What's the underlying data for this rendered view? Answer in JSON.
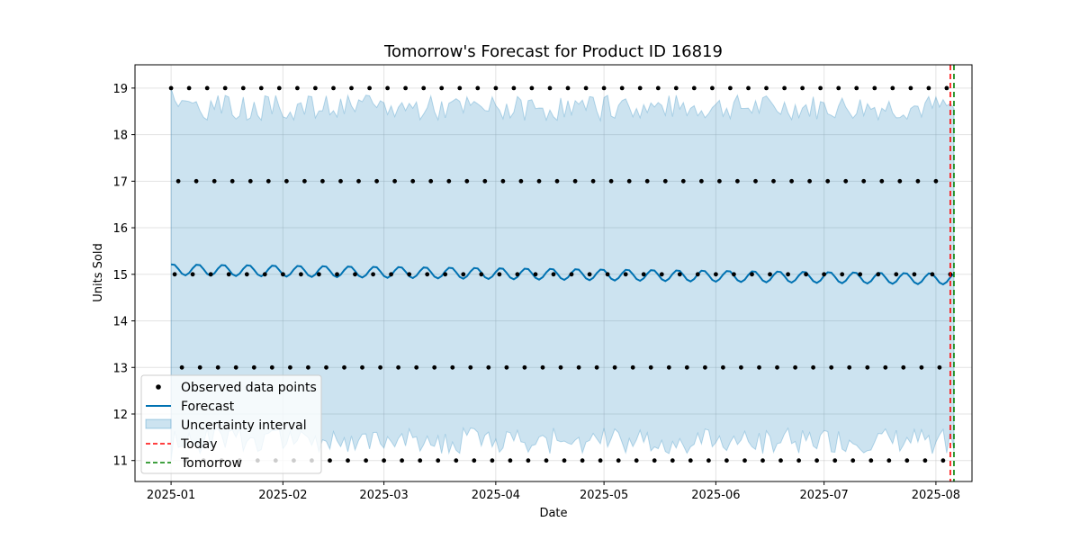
{
  "chart_data": {
    "type": "line",
    "title": "Tomorrow's Forecast for Product ID 16819",
    "xlabel": "Date",
    "ylabel": "Units Sold",
    "x_range": [
      "2024-12-22",
      "2025-08-11"
    ],
    "ylim": [
      10.55,
      19.5
    ],
    "grid": true,
    "legend_placement": "lower-left",
    "x_ticks": [
      "2025-01",
      "2025-02",
      "2025-03",
      "2025-04",
      "2025-05",
      "2025-06",
      "2025-07",
      "2025-08"
    ],
    "y_ticks": [
      11,
      12,
      13,
      14,
      15,
      16,
      17,
      18,
      19
    ],
    "observed": {
      "name": "Observed data points",
      "start_date": "2025-01-01",
      "end_date": "2025-08-05",
      "period_days": 5,
      "cycle_values": [
        19,
        15,
        17,
        13,
        11
      ],
      "color": "#000000"
    },
    "forecast": {
      "name": "Forecast",
      "start_date": "2025-01-01",
      "end_date": "2025-08-06",
      "level_start": 15.1,
      "level_end": 14.9,
      "weekly_amplitude": 0.12,
      "period_days": 7,
      "color": "#0072b2"
    },
    "uncertainty": {
      "name": "Uncertainty interval",
      "upper_typical": 18.55,
      "lower_typical": 11.45,
      "start_upper": 19.0,
      "start_lower": 11.0,
      "color": "#0072b2",
      "opacity": 0.2
    },
    "today": {
      "name": "Today",
      "date": "2025-08-05",
      "color": "#ff0000"
    },
    "tomorrow": {
      "name": "Tomorrow",
      "date": "2025-08-06",
      "color": "#008000"
    }
  }
}
